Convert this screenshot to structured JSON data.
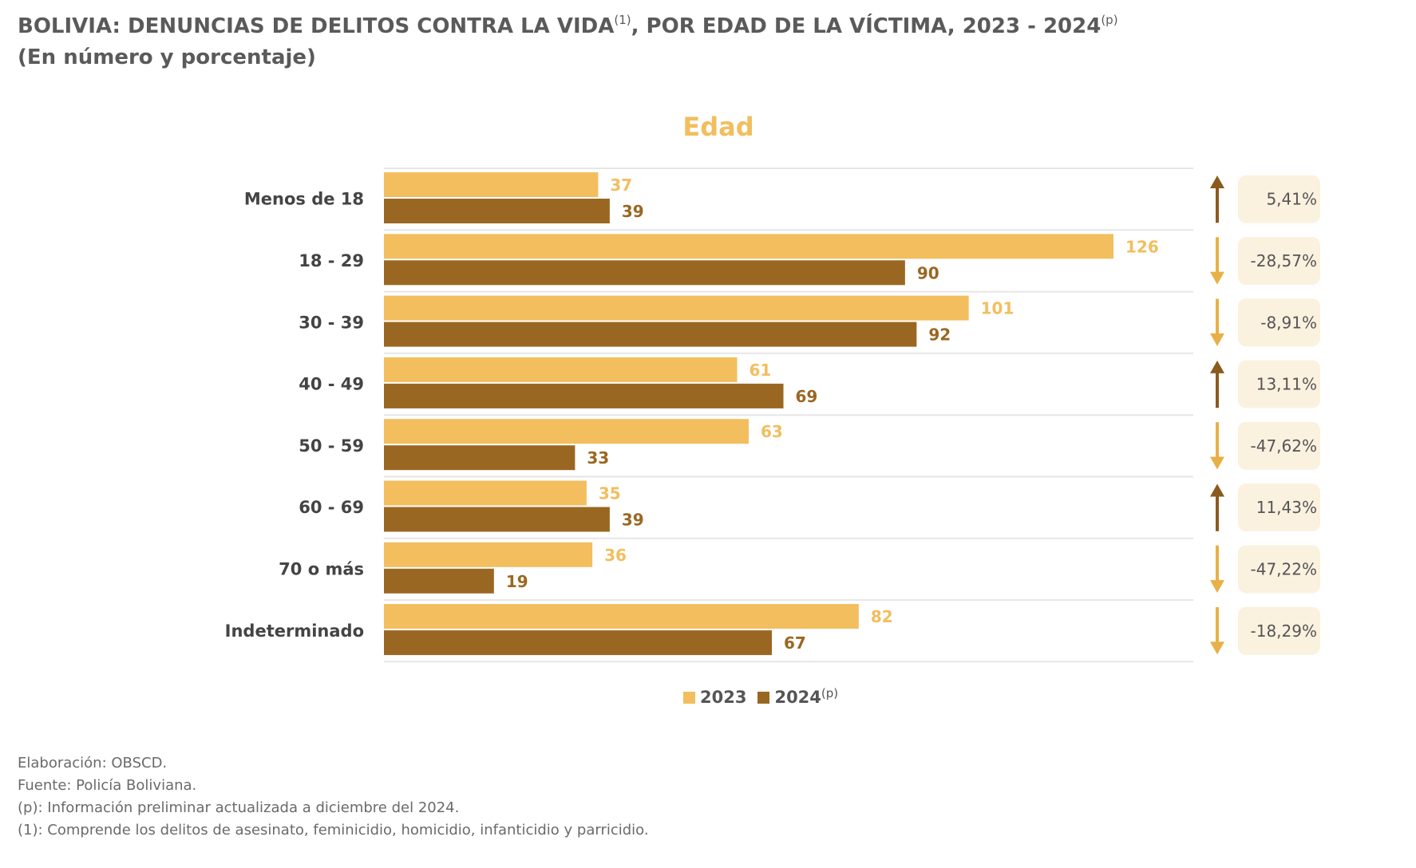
{
  "header": {
    "title": "BOLIVIA: DENUNCIAS DE DELITOS CONTRA LA VIDA",
    "title_sup1": "(1)",
    "title_rest": ", POR EDAD DE LA VÍCTIMA, 2023 - 2024",
    "title_sup2": "(p)",
    "subtitle": "(En número y porcentaje)"
  },
  "chart_data": {
    "type": "bar",
    "orientation": "horizontal",
    "title": "Edad",
    "categories": [
      "Menos de 18",
      "18 - 29",
      "30 - 39",
      "40 - 49",
      "50 - 59",
      "60 - 69",
      "70 o más",
      "Indeterminado"
    ],
    "series": [
      {
        "name": "2023",
        "values": [
          37,
          126,
          101,
          61,
          63,
          35,
          36,
          82
        ]
      },
      {
        "name": "2024",
        "values": [
          39,
          90,
          92,
          69,
          33,
          39,
          19,
          67
        ]
      }
    ],
    "legend_sup": "(p)",
    "legend_placement": "bottom",
    "changes": [
      "5,41%",
      "-28,57%",
      "-8,91%",
      "13,11%",
      "-47,62%",
      "11,43%",
      "-47,22%",
      "-18,29%"
    ],
    "change_direction": [
      "up",
      "down",
      "down",
      "up",
      "down",
      "up",
      "down",
      "down"
    ],
    "xlim": [
      0,
      126
    ],
    "grid": "horizontal separators",
    "colors": {
      "series_2023": "#F2BE5E",
      "series_2024": "#9A6722",
      "arrow_up": "#8A5A1E",
      "arrow_down": "#E8B048",
      "badge_bg": "#FBF1DF",
      "title": "#F2BE5E",
      "separator": "#E6E6E6"
    }
  },
  "notes": [
    "Elaboración: OBSCD.",
    "Fuente: Policía Boliviana.",
    "(p): Información preliminar actualizada a diciembre del 2024.",
    "(1): Comprende los delitos de asesinato, feminicidio, homicidio, infanticidio y parricidio."
  ]
}
